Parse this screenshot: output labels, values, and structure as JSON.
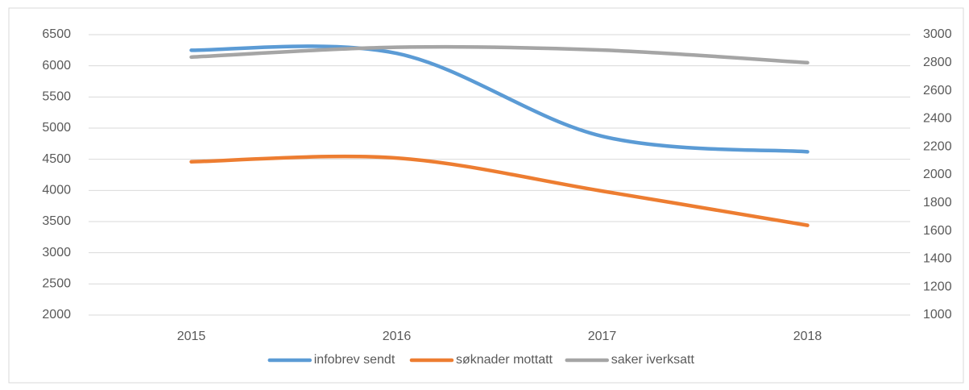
{
  "chart_data": {
    "type": "line",
    "categories": [
      "2015",
      "2016",
      "2017",
      "2018"
    ],
    "series": [
      {
        "name": "infobrev sendt",
        "color": "#5b9bd5",
        "values": [
          6250,
          6200,
          4870,
          4620
        ]
      },
      {
        "name": "søknader mottatt",
        "color": "#ed7d31",
        "values": [
          4460,
          4520,
          3990,
          3440
        ]
      },
      {
        "name": "saker iverksatt",
        "color": "#a5a5a5",
        "values": [
          2840,
          2910,
          2890,
          2800
        ],
        "axis": "y2"
      }
    ],
    "ylim": [
      2000,
      6500
    ],
    "yticks": [
      2000,
      2500,
      3000,
      3500,
      4000,
      4500,
      5000,
      5500,
      6000,
      6500
    ],
    "y2lim": [
      1000,
      3000
    ],
    "y2ticks": [
      1000,
      1200,
      1400,
      1600,
      1800,
      2000,
      2200,
      2400,
      2600,
      2800,
      3000
    ],
    "grid": true,
    "smooth": true,
    "legend": "bottom"
  }
}
